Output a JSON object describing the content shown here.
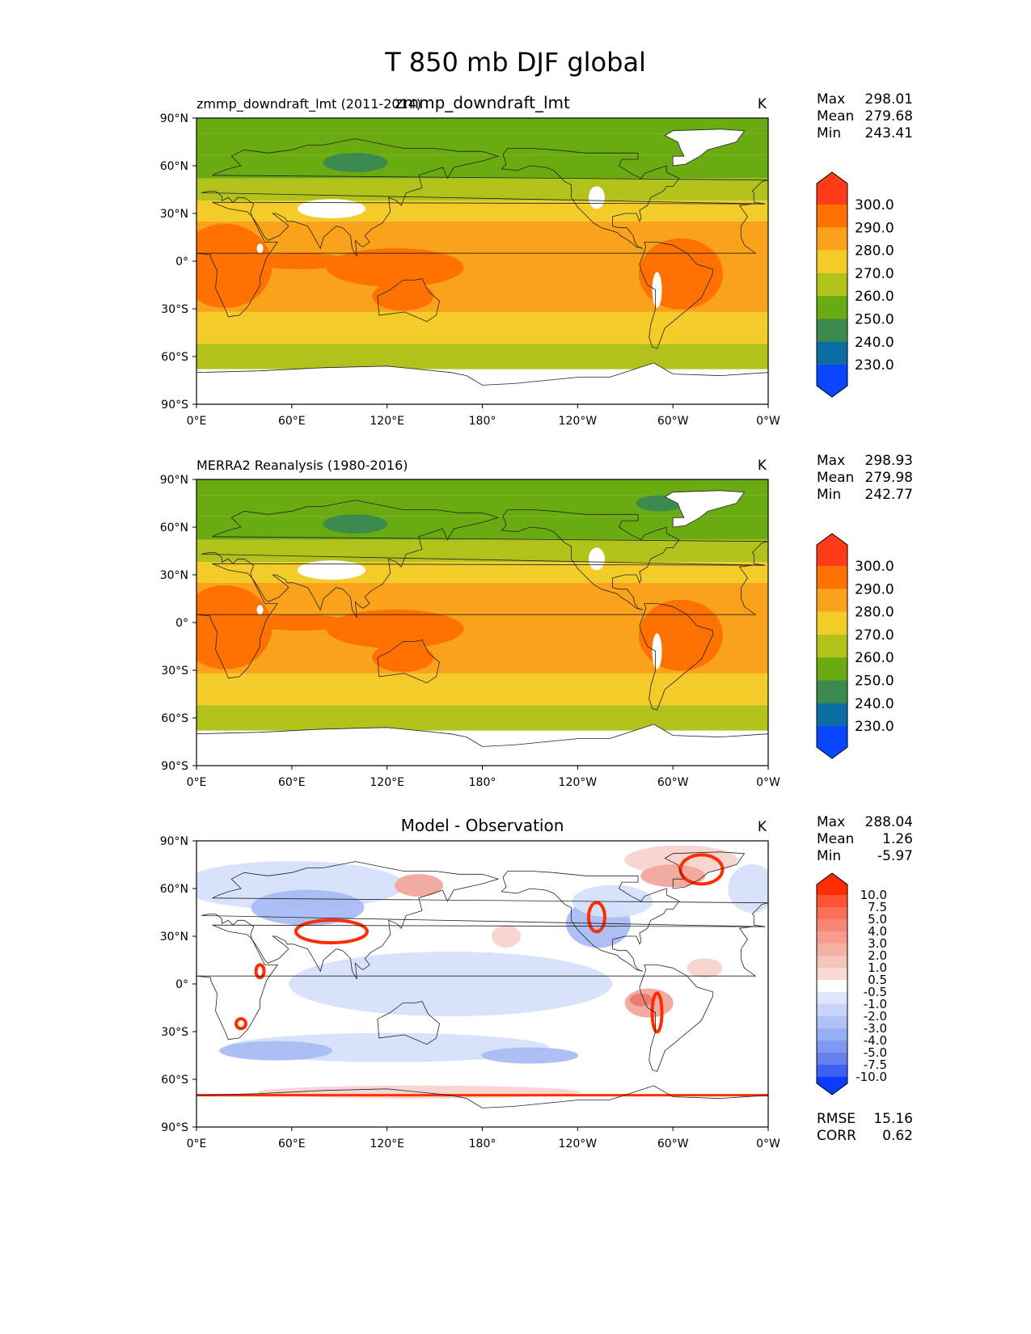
{
  "title": "T 850 mb DJF global",
  "units": "K",
  "lat_ticks": [
    "90°N",
    "60°N",
    "30°N",
    "0°",
    "30°S",
    "60°S",
    "90°S"
  ],
  "lon_ticks": [
    "0°E",
    "60°E",
    "120°E",
    "180°",
    "120°W",
    "60°W",
    "0°W"
  ],
  "colors": {
    "abs_levels": [
      {
        "label": "300.0",
        "color": "#ff3b1a"
      },
      {
        "label": "290.0",
        "color": "#ff7100"
      },
      {
        "label": "280.0",
        "color": "#fba21b"
      },
      {
        "label": "270.0",
        "color": "#f3cc2a"
      },
      {
        "label": "260.0",
        "color": "#b1c31b"
      },
      {
        "label": "250.0",
        "color": "#6aab12"
      },
      {
        "label": "240.0",
        "color": "#3b8b4e"
      },
      {
        "label": "230.0",
        "color": "#0a6ea3"
      },
      {
        "label": "",
        "color": "#0a46ff"
      }
    ],
    "diff_top": "#ff2d00",
    "diff_bottom": "#0a3cff"
  },
  "chart_data": [
    {
      "type": "heatmap",
      "panel": "model",
      "title_left": "zmmp_downdraft_lmt (2011-2014)",
      "title_center": "zmmp_downdraft_lmt",
      "units": "K",
      "stats": [
        {
          "label": "Max",
          "value": "298.01"
        },
        {
          "label": "Mean",
          "value": "279.68"
        },
        {
          "label": "Min",
          "value": "243.41"
        }
      ],
      "colorbar": [
        "300.0",
        "290.0",
        "280.0",
        "270.0",
        "260.0",
        "250.0",
        "240.0",
        "230.0"
      ],
      "zonal_bands_K": [
        {
          "lat": [
            90,
            80
          ],
          "value": 255
        },
        {
          "lat": [
            80,
            67
          ],
          "value": 252
        },
        {
          "lat": [
            67,
            52
          ],
          "value": 258
        },
        {
          "lat": [
            52,
            38
          ],
          "value": 268
        },
        {
          "lat": [
            38,
            25
          ],
          "value": 276
        },
        {
          "lat": [
            25,
            -32
          ],
          "value": 284
        },
        {
          "lat": [
            -32,
            -40
          ],
          "value": 278
        },
        {
          "lat": [
            -40,
            -52
          ],
          "value": 271
        },
        {
          "lat": [
            -52,
            -68
          ],
          "value": 265
        }
      ]
    },
    {
      "type": "heatmap",
      "panel": "observation",
      "title_left": "MERRA2 Reanalysis (1980-2016)",
      "units": "K",
      "stats": [
        {
          "label": "Max",
          "value": "298.93"
        },
        {
          "label": "Mean",
          "value": "279.98"
        },
        {
          "label": "Min",
          "value": "242.77"
        }
      ],
      "colorbar": [
        "300.0",
        "290.0",
        "280.0",
        "270.0",
        "260.0",
        "250.0",
        "240.0",
        "230.0"
      ],
      "zonal_bands_K": [
        {
          "lat": [
            90,
            80
          ],
          "value": 255
        },
        {
          "lat": [
            80,
            67
          ],
          "value": 252
        },
        {
          "lat": [
            67,
            52
          ],
          "value": 258
        },
        {
          "lat": [
            52,
            38
          ],
          "value": 268
        },
        {
          "lat": [
            38,
            25
          ],
          "value": 276
        },
        {
          "lat": [
            25,
            -32
          ],
          "value": 284
        },
        {
          "lat": [
            -32,
            -40
          ],
          "value": 278
        },
        {
          "lat": [
            -40,
            -52
          ],
          "value": 271
        },
        {
          "lat": [
            -52,
            -68
          ],
          "value": 265
        }
      ]
    },
    {
      "type": "heatmap",
      "panel": "difference",
      "title_center": "Model - Observation",
      "units": "K",
      "stats": [
        {
          "label": "Max",
          "value": "288.04"
        },
        {
          "label": "Mean",
          "value": "1.26"
        },
        {
          "label": "Min",
          "value": "-5.97"
        }
      ],
      "colorbar": [
        "10.0",
        "7.5",
        "5.0",
        "4.0",
        "3.0",
        "2.0",
        "1.0",
        "0.5",
        "-0.5",
        "-1.0",
        "-2.0",
        "-3.0",
        "-4.0",
        "-5.0",
        "-7.5",
        "-10.0"
      ],
      "metrics": [
        {
          "label": "RMSE",
          "value": "15.16"
        },
        {
          "label": "CORR",
          "value": "0.62"
        }
      ]
    }
  ]
}
